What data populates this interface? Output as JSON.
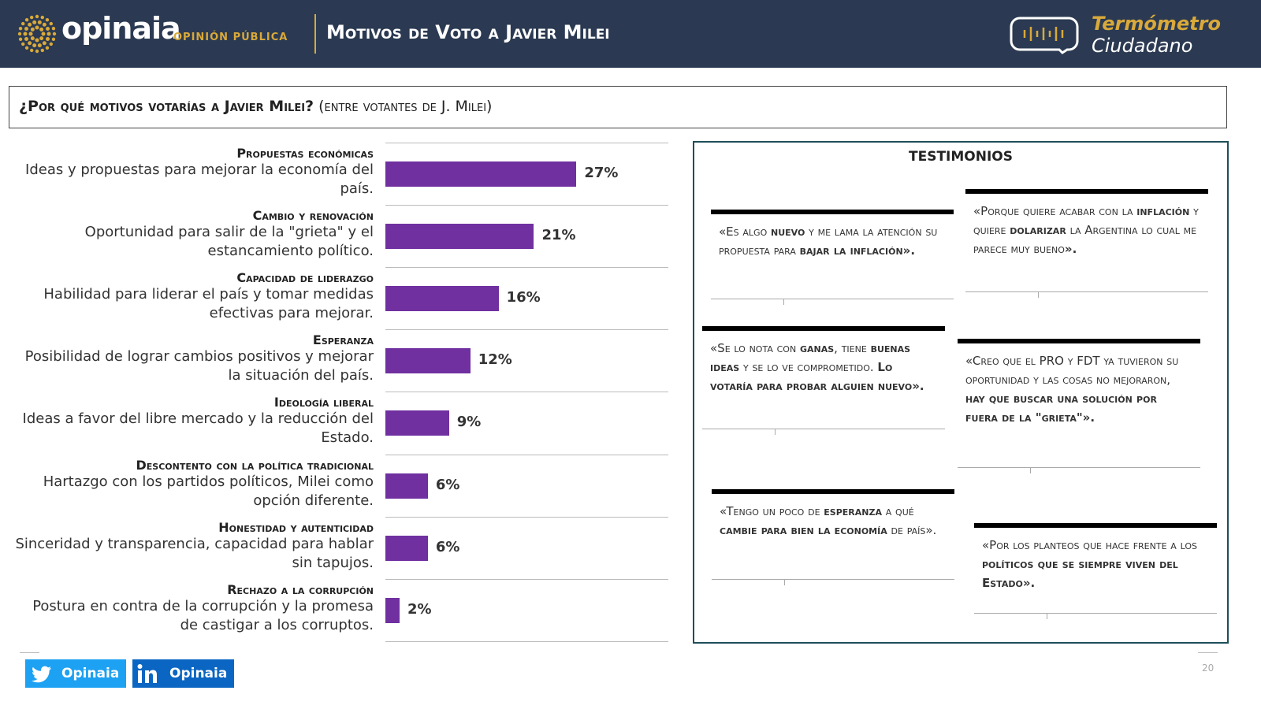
{
  "header": {
    "brand": "opinaia",
    "brand_sub": "OPINIÓN PÚBLICA",
    "title": "Motivos de Voto a Javier Milei",
    "badge_line1": "Termómetro",
    "badge_line2": "Ciudadano"
  },
  "question": {
    "main": "¿Por qué motivos votarías a Javier Milei?",
    "note": "(entre votantes de J. Milei)"
  },
  "chart_data": {
    "type": "bar",
    "orientation": "horizontal",
    "categories": [
      "Propuestas económicas",
      "Cambio y renovación",
      "Capacidad de liderazgo",
      "Esperanza",
      "Ideología liberal",
      "Descontento con la política tradicional",
      "Honestidad y autenticidad",
      "Rechazo a la corrupción"
    ],
    "descriptions": [
      "Ideas y propuestas para mejorar la economía del país.",
      "Oportunidad para salir de la \"grieta\" y el estancamiento político.",
      "Habilidad para liderar el país y tomar medidas efectivas para mejorar.",
      "Posibilidad de lograr cambios positivos y mejorar la situación del país.",
      "Ideas a favor del libre mercado y la reducción del Estado.",
      "Hartazgo con los partidos políticos, Milei como opción diferente.",
      "Sinceridad y transparencia, capacidad para hablar sin tapujos.",
      "Postura en contra de la corrupción y la promesa de castigar a los corruptos."
    ],
    "values": [
      27,
      21,
      16,
      12,
      9,
      6,
      6,
      2
    ],
    "value_labels": [
      "27%",
      "21%",
      "16%",
      "12%",
      "9%",
      "6%",
      "6%",
      "2%"
    ],
    "color": "#7030a0",
    "xlim": [
      0,
      40
    ]
  },
  "testimonials": {
    "title": "TESTIMONIOS",
    "quotes": [
      {
        "segments": [
          {
            "text": "«Es algo ",
            "bold": false
          },
          {
            "text": "nuevo",
            "bold": true
          },
          {
            "text": " y me lama la atención su propuesta para ",
            "bold": false
          },
          {
            "text": "bajar la inflación».",
            "bold": true
          }
        ]
      },
      {
        "segments": [
          {
            "text": "«Porque quiere acabar con la ",
            "bold": false
          },
          {
            "text": "inflación",
            "bold": true
          },
          {
            "text": " y quiere ",
            "bold": false
          },
          {
            "text": "dolarizar",
            "bold": true
          },
          {
            "text": " la Argentina lo cual me parece muy bueno",
            "bold": false
          },
          {
            "text": "».",
            "bold": true
          }
        ]
      },
      {
        "segments": [
          {
            "text": "«Se lo nota con ",
            "bold": false
          },
          {
            "text": "ganas",
            "bold": true
          },
          {
            "text": ", tiene ",
            "bold": false
          },
          {
            "text": "buenas ideas",
            "bold": true
          },
          {
            "text": " y se lo ve comprometido. ",
            "bold": false
          },
          {
            "text": "Lo votaría para probar alguien nuevo».",
            "bold": true
          }
        ]
      },
      {
        "segments": [
          {
            "text": "«Creo que el PRO y FDT ya tuvieron su oportunidad y las cosas no mejoraron, ",
            "bold": false
          },
          {
            "text": "hay que buscar una solución por fuera de la \"grieta\"».",
            "bold": true
          }
        ]
      },
      {
        "segments": [
          {
            "text": "«Tengo un poco de ",
            "bold": false
          },
          {
            "text": "esperanza",
            "bold": true
          },
          {
            "text": " a qué ",
            "bold": false
          },
          {
            "text": "cambie para bien la economía",
            "bold": true
          },
          {
            "text": " de país».",
            "bold": false
          }
        ]
      },
      {
        "segments": [
          {
            "text": "«Por los planteos que hace frente a los ",
            "bold": false
          },
          {
            "text": "políticos que se siempre viven del Estado».",
            "bold": true
          }
        ]
      }
    ]
  },
  "footer": {
    "twitter": "Opinaia",
    "linkedin": "Opinaia",
    "page": "20"
  }
}
